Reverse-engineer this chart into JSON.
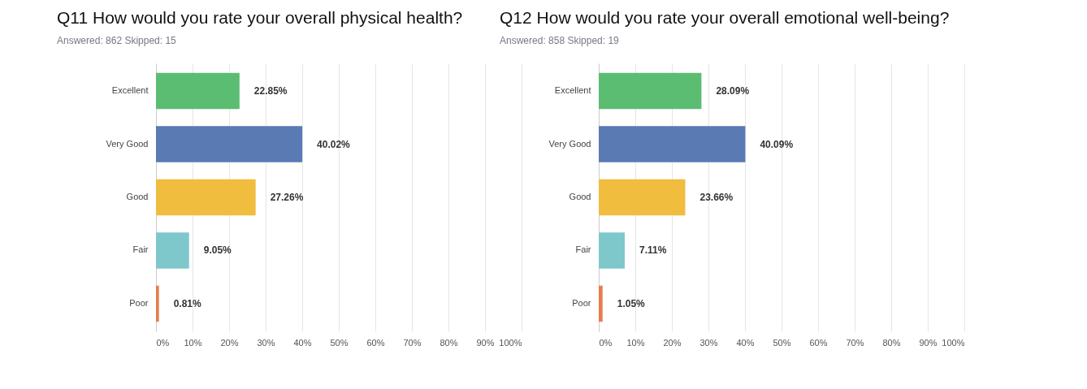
{
  "chart_data": [
    {
      "type": "bar",
      "orientation": "horizontal",
      "title": "Q11 How would you rate your overall physical health?",
      "subtitle": "Answered: 862    Skipped: 15",
      "categories": [
        "Excellent",
        "Very Good",
        "Good",
        "Fair",
        "Poor"
      ],
      "values": [
        22.85,
        40.02,
        27.26,
        9.05,
        0.81
      ],
      "colors": [
        "#5bbd72",
        "#5a7ab4",
        "#f0bd3f",
        "#7ec8cc",
        "#e57d50"
      ],
      "value_labels": [
        "22.85%",
        "40.02%",
        "27.26%",
        "9.05%",
        "0.81%"
      ],
      "xlim": [
        0,
        100
      ],
      "xticks": [
        {
          "value": 0,
          "label": "0%"
        },
        {
          "value": 10,
          "label": "10%"
        },
        {
          "value": 20,
          "label": "20%"
        },
        {
          "value": 30,
          "label": "30%"
        },
        {
          "value": 40,
          "label": "40%"
        },
        {
          "value": 50,
          "label": "50%"
        },
        {
          "value": 60,
          "label": "60%"
        },
        {
          "value": 70,
          "label": "70%"
        },
        {
          "value": 80,
          "label": "80%"
        },
        {
          "value": 90,
          "label": "90%"
        },
        {
          "value": 100,
          "label": "100%"
        }
      ],
      "grid": "x",
      "legend": false
    },
    {
      "type": "bar",
      "orientation": "horizontal",
      "title": "Q12 How would you rate your overall emotional well-being?",
      "subtitle": "Answered: 858    Skipped: 19",
      "categories": [
        "Excellent",
        "Very Good",
        "Good",
        "Fair",
        "Poor"
      ],
      "values": [
        28.09,
        40.09,
        23.66,
        7.11,
        1.05
      ],
      "colors": [
        "#5bbd72",
        "#5a7ab4",
        "#f0bd3f",
        "#7ec8cc",
        "#e57d50"
      ],
      "value_labels": [
        "28.09%",
        "40.09%",
        "23.66%",
        "7.11%",
        "1.05%"
      ],
      "xlim": [
        0,
        100
      ],
      "xticks": [
        {
          "value": 0,
          "label": "0%"
        },
        {
          "value": 10,
          "label": "10%"
        },
        {
          "value": 20,
          "label": "20%"
        },
        {
          "value": 30,
          "label": "30%"
        },
        {
          "value": 40,
          "label": "40%"
        },
        {
          "value": 50,
          "label": "50%"
        },
        {
          "value": 60,
          "label": "60%"
        },
        {
          "value": 70,
          "label": "70%"
        },
        {
          "value": 80,
          "label": "80%"
        },
        {
          "value": 90,
          "label": "90%"
        },
        {
          "value": 100,
          "label": "100%"
        }
      ],
      "grid": "x",
      "legend": false
    }
  ]
}
